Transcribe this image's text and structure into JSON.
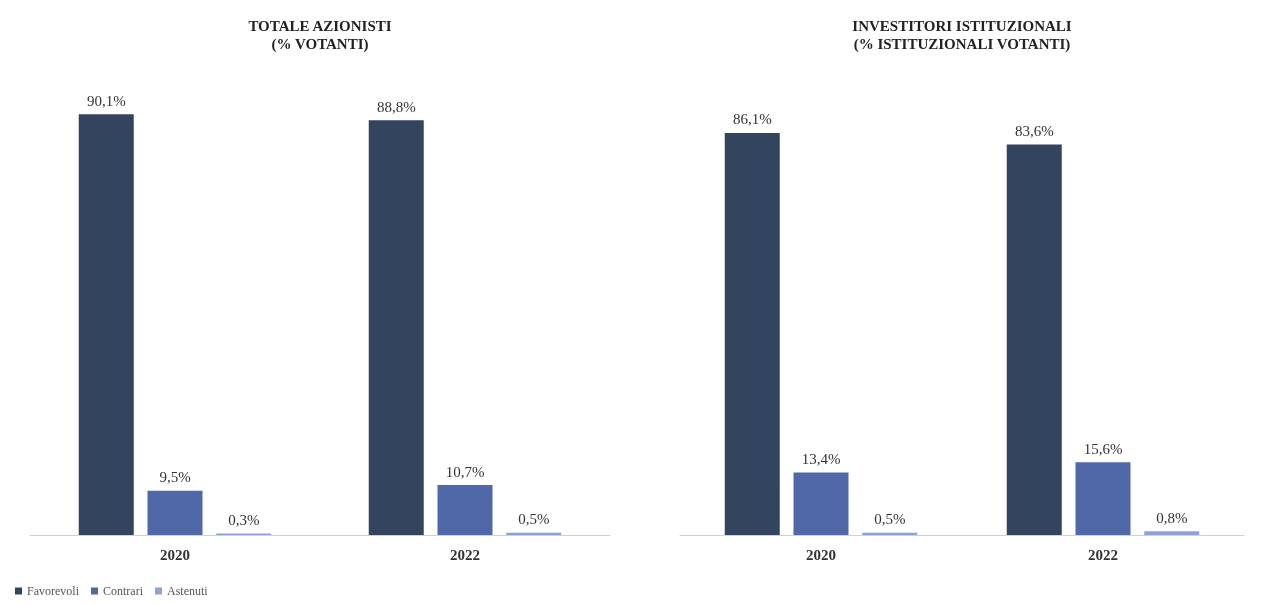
{
  "chart_data": [
    {
      "type": "bar",
      "title": "TOTALE AZIONISTI\n(% VOTANTI)",
      "categories": [
        "2020",
        "2022"
      ],
      "series": [
        {
          "name": "Favorevoli",
          "color": "#33445f",
          "values": [
            90.1,
            88.8
          ],
          "value_labels": [
            "90,1%",
            "88,8%"
          ]
        },
        {
          "name": "Contrari",
          "color": "#5068a8",
          "values": [
            9.5,
            10.7
          ],
          "value_labels": [
            "9,5%",
            "10,7%"
          ]
        },
        {
          "name": "Astenuti",
          "color": "#8fa2d8",
          "values": [
            0.3,
            0.5
          ],
          "value_labels": [
            "0,3%",
            "0,5%"
          ]
        }
      ],
      "legend": "bottom left"
    },
    {
      "type": "bar",
      "title": "INVESTITORI ISTITUZIONALI\n(% ISTITUZIONALI VOTANTI)",
      "categories": [
        "2020",
        "2022"
      ],
      "series": [
        {
          "color": "#33445f",
          "values": [
            86.1,
            83.6
          ],
          "value_labels": [
            "86,1%",
            "83,6%"
          ]
        },
        {
          "color": "#5068a8",
          "values": [
            13.4,
            15.6
          ],
          "value_labels": [
            "13,4%",
            "15,6%"
          ]
        },
        {
          "color": "#8fa2d8",
          "values": [
            0.5,
            0.8
          ],
          "value_labels": [
            "0,5%",
            "0,8%"
          ]
        }
      ]
    }
  ]
}
